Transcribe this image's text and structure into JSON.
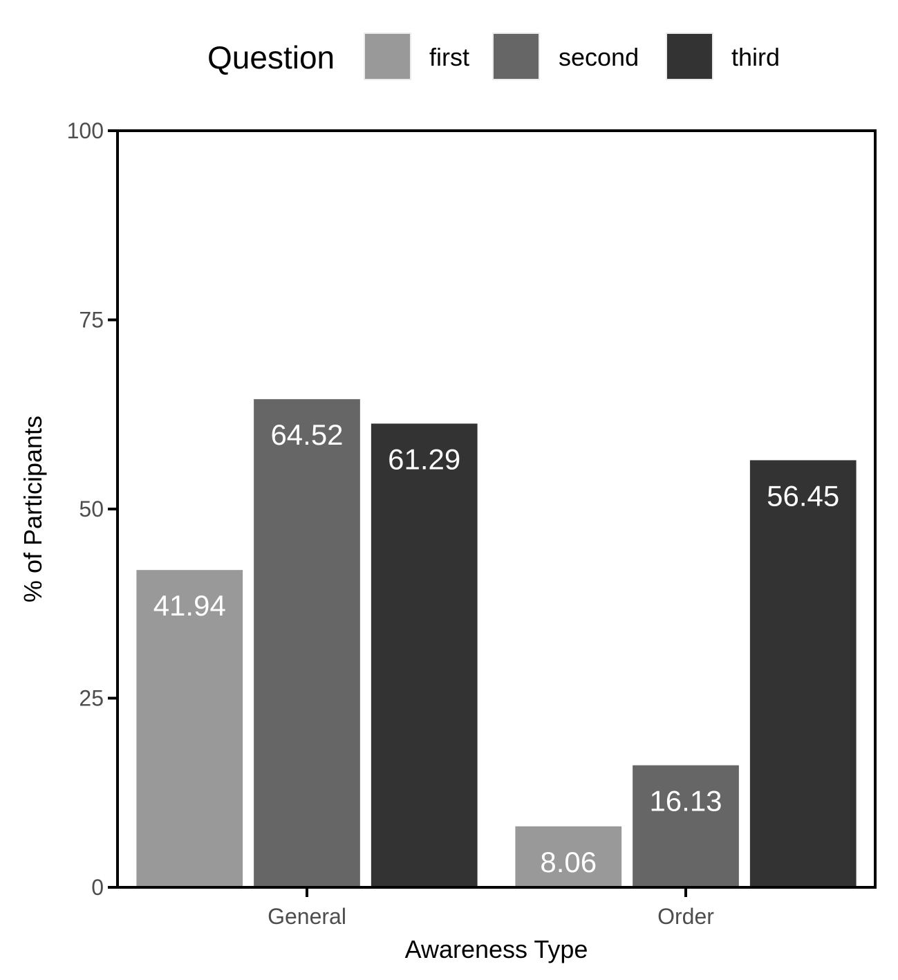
{
  "chart_data": {
    "type": "bar",
    "categories": [
      "General",
      "Order"
    ],
    "series": [
      {
        "name": "first",
        "color": "#999999",
        "values": [
          41.94,
          8.06
        ]
      },
      {
        "name": "second",
        "color": "#666666",
        "values": [
          64.52,
          16.13
        ]
      },
      {
        "name": "third",
        "color": "#333333",
        "values": [
          61.29,
          56.45
        ]
      }
    ],
    "data_labels": [
      [
        "41.94",
        "8.06"
      ],
      [
        "64.52",
        "16.13"
      ],
      [
        "61.29",
        "56.45"
      ]
    ],
    "legend_title": "Question",
    "legend_position": "top",
    "xlabel": "Awareness Type",
    "ylabel": "% of Participants",
    "ylim": [
      0,
      100
    ],
    "yticks": [
      0,
      25,
      50,
      75,
      100
    ],
    "ytick_labels": [
      "0",
      "25",
      "50",
      "75",
      "100"
    ],
    "grid": false
  }
}
